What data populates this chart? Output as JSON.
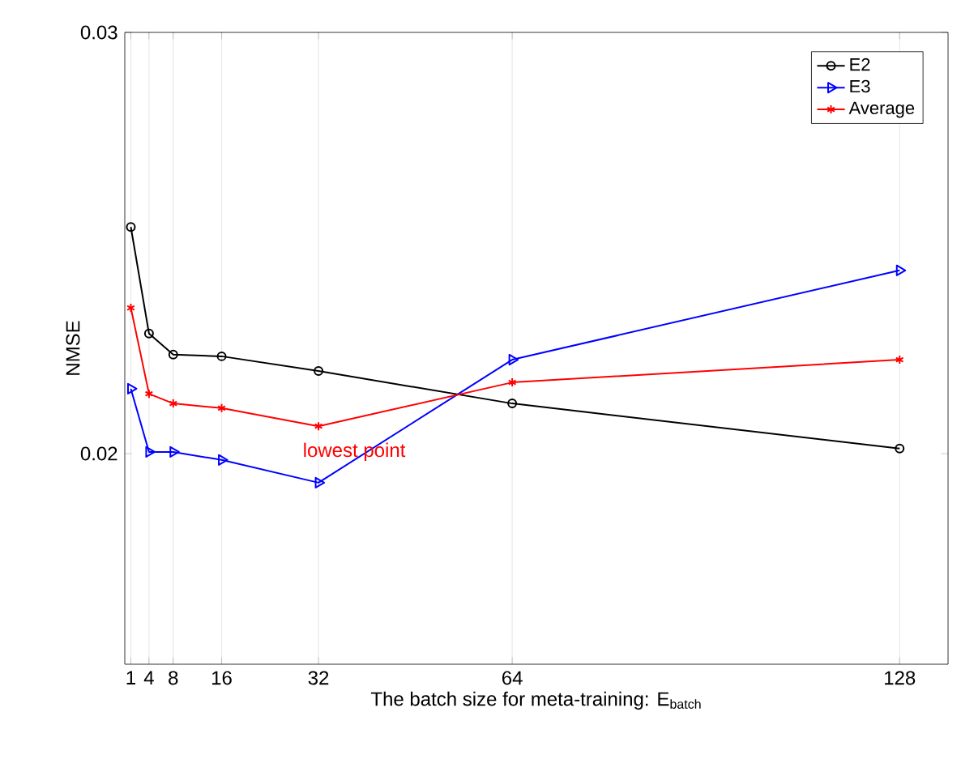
{
  "chart_data": {
    "type": "line",
    "xlabel": "The batch size for meta-training: E$_{batch}$",
    "ylabel": "NMSE",
    "x": [
      1,
      4,
      8,
      16,
      32,
      64,
      128
    ],
    "series": [
      {
        "name": "E2",
        "color": "#000000",
        "marker": "circle",
        "values": [
          0.02538,
          0.02285,
          0.02235,
          0.02231,
          0.02196,
          0.02119,
          0.02012
        ]
      },
      {
        "name": "E3",
        "color": "#0000ff",
        "marker": "triangle",
        "values": [
          0.02154,
          0.02004,
          0.02004,
          0.01985,
          0.01931,
          0.02223,
          0.02435
        ]
      },
      {
        "name": "Average",
        "color": "#ff0000",
        "marker": "cross",
        "values": [
          0.02346,
          0.02142,
          0.02119,
          0.02108,
          0.02065,
          0.02169,
          0.02223
        ]
      }
    ],
    "xlim": [
      0,
      136
    ],
    "xticks": [
      1,
      4,
      8,
      16,
      32,
      64,
      128
    ],
    "ylim": [
      0.015,
      0.03
    ],
    "yticks": [
      0.02,
      0.03
    ],
    "grid": "x",
    "legend": "top right",
    "line_style": "solid",
    "annotations": [
      {
        "text": "lowest point",
        "x": 32,
        "y": 0.02065
      }
    ]
  }
}
